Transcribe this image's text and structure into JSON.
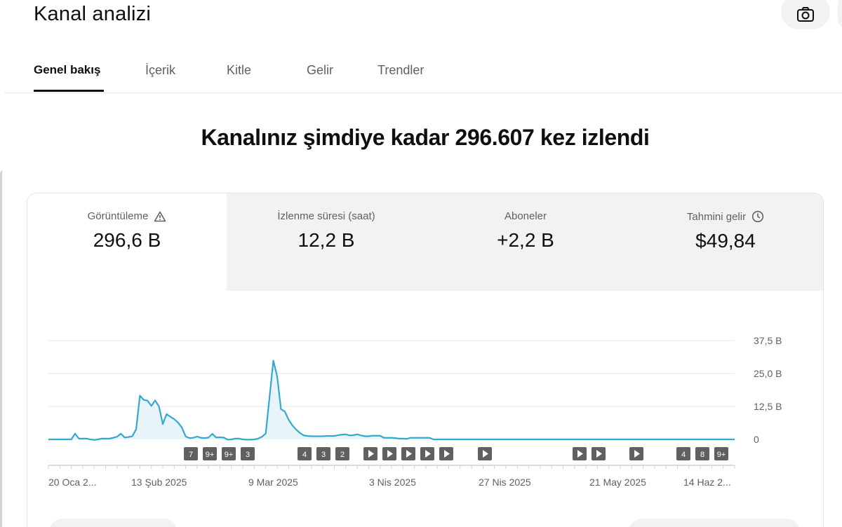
{
  "header": {
    "title": "Kanal analizi",
    "camera_icon": "camera-icon"
  },
  "tabs": [
    {
      "label": "Genel bakış",
      "active": true
    },
    {
      "label": "İçerik"
    },
    {
      "label": "Kitle"
    },
    {
      "label": "Gelir"
    },
    {
      "label": "Trendler"
    }
  ],
  "headline": "Kanalınız şimdiye kadar 296.607 kez izlendi",
  "metrics": [
    {
      "label": "Görüntüleme",
      "value": "296,6 B",
      "icon": "warning-icon"
    },
    {
      "label": "İzlenme süresi (saat)",
      "value": "12,2 B"
    },
    {
      "label": "Aboneler",
      "value": "+2,2 B"
    },
    {
      "label": "Tahmini gelir",
      "value": "$49,84",
      "icon": "clock-icon"
    }
  ],
  "colors": {
    "line": "#35a8cf",
    "fill": "#e8f4fa",
    "badge": "#606060"
  },
  "chart_data": {
    "type": "area",
    "x_tick_labels": [
      "20 Oca 2...",
      "13 Şub 2025",
      "9 Mar 2025",
      "3 Nis 2025",
      "27 Nis 2025",
      "21 May 2025",
      "14 Haz 2..."
    ],
    "y_tick_labels": [
      "37,5 B",
      "25,0 B",
      "12,5 B",
      "0"
    ],
    "ylim": [
      0,
      37500
    ],
    "grid": true,
    "start_date": "2025-01-20",
    "values": [
      0,
      0,
      0,
      0,
      0,
      0,
      0,
      2200,
      300,
      300,
      300,
      0,
      -200,
      0,
      300,
      300,
      300,
      600,
      1000,
      2200,
      700,
      900,
      1200,
      3800,
      16600,
      15000,
      14700,
      12700,
      14800,
      12500,
      5800,
      9600,
      8600,
      7700,
      6400,
      4500,
      1100,
      500,
      600,
      1100,
      600,
      500,
      700,
      2100,
      700,
      800,
      700,
      -100,
      0,
      300,
      300,
      0,
      -100,
      -100,
      0,
      300,
      1000,
      2200,
      16000,
      29900,
      23900,
      11500,
      10600,
      7500,
      5300,
      3700,
      2400,
      1500,
      1300,
      1200,
      1200,
      1200,
      1200,
      1300,
      1300,
      1300,
      1600,
      1800,
      1900,
      1500,
      1600,
      1900,
      1500,
      1200,
      1200,
      1400,
      1400,
      1400,
      600,
      600,
      600,
      500,
      300,
      300,
      200,
      600,
      600,
      600,
      600,
      600,
      600,
      0,
      0,
      0,
      0,
      0,
      0,
      0,
      0,
      0,
      0,
      0,
      0,
      0,
      0,
      0,
      0,
      0,
      0,
      0,
      0,
      0,
      0,
      0,
      0,
      0,
      0,
      0,
      0,
      0,
      0,
      0,
      0,
      0,
      0,
      0,
      0,
      0,
      0,
      0,
      0,
      0,
      0,
      0,
      0,
      0,
      0,
      0,
      0,
      0,
      0,
      0,
      0,
      0,
      0,
      0,
      0,
      0,
      0,
      0,
      0,
      0,
      0,
      0,
      0,
      0,
      0,
      0,
      0,
      0,
      0,
      0,
      0,
      0,
      0,
      0,
      0,
      0,
      0,
      0,
      0
    ],
    "markers": [
      {
        "label": "7"
      },
      {
        "label": "9+"
      },
      {
        "label": "9+"
      },
      {
        "label": "3"
      },
      {
        "label": "4"
      },
      {
        "label": "3"
      },
      {
        "label": "2"
      },
      {
        "label": "play"
      },
      {
        "label": "play"
      },
      {
        "label": "play"
      },
      {
        "label": "play"
      },
      {
        "label": "play"
      },
      {
        "label": "play"
      },
      {
        "label": "play"
      },
      {
        "label": "play"
      },
      {
        "label": "play"
      },
      {
        "label": "4"
      },
      {
        "label": "8"
      },
      {
        "label": "9+"
      }
    ]
  }
}
